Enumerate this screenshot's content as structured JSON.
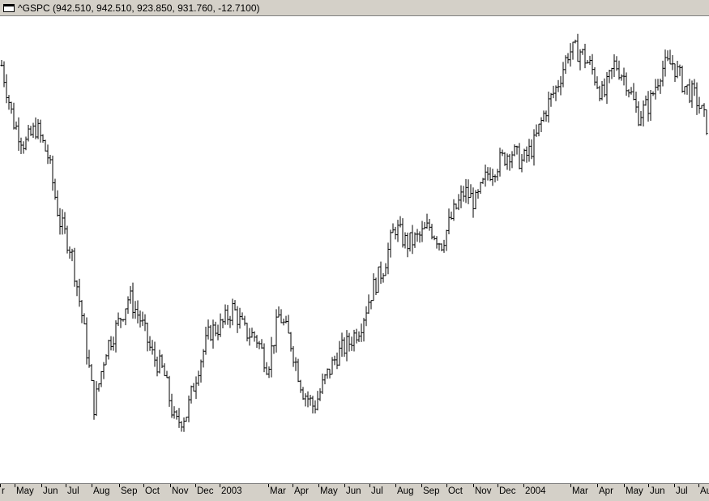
{
  "window": {
    "title": "^GSPC (942.510, 942.510, 923.850, 931.760, -12.7100)",
    "icon": "window-icon"
  },
  "chart_data": {
    "type": "line",
    "title": "^GSPC (942.510, 942.510, 923.850, 931.760, -12.7100)",
    "xlabel": "",
    "ylabel": "",
    "grid": false,
    "legend": "none",
    "line_color": "#000000",
    "x_axis_labels": [
      "r",
      "May",
      "Jun",
      "Jul",
      "Aug",
      "Sep",
      "Oct",
      "Nov",
      "Dec",
      "2003",
      "Mar",
      "Apr",
      "May",
      "Jun",
      "Jul",
      "Aug",
      "Sep",
      "Oct",
      "Nov",
      "Dec",
      "2004",
      "Mar",
      "Apr",
      "May",
      "Jun",
      "Jul",
      "Au"
    ],
    "ylim": [
      770,
      1170
    ],
    "series": [
      {
        "x": [
          "2002-04",
          "2002-04",
          "2002-05",
          "2002-05",
          "2002-05",
          "2002-06",
          "2002-06",
          "2002-07",
          "2002-07",
          "2002-07",
          "2002-07",
          "2002-08",
          "2002-08",
          "2002-08",
          "2002-09",
          "2002-09",
          "2002-10",
          "2002-10",
          "2002-10",
          "2002-11",
          "2002-11",
          "2002-12",
          "2002-12",
          "2002-12",
          "2003-01",
          "2003-01",
          "2003-02",
          "2003-03",
          "2003-03",
          "2003-03",
          "2003-04",
          "2003-04",
          "2003-05",
          "2003-05",
          "2003-06",
          "2003-06",
          "2003-07",
          "2003-07",
          "2003-08",
          "2003-08",
          "2003-09",
          "2003-09",
          "2003-10",
          "2003-10",
          "2003-11",
          "2003-11",
          "2003-12",
          "2003-12",
          "2004-01",
          "2004-01",
          "2004-02",
          "2004-03",
          "2004-03",
          "2004-04",
          "2004-04",
          "2004-05",
          "2004-05",
          "2004-06",
          "2004-06",
          "2004-07",
          "2004-07",
          "2004-08"
        ],
        "values": [
          1128,
          1080,
          1060,
          1075,
          1050,
          995,
          970,
          910,
          835,
          885,
          905,
          930,
          910,
          880,
          865,
          820,
          830,
          870,
          900,
          905,
          920,
          900,
          895,
          870,
          915,
          890,
          850,
          835,
          860,
          880,
          890,
          905,
          935,
          955,
          990,
          975,
          980,
          990,
          975,
          1000,
          1020,
          1010,
          1035,
          1045,
          1055,
          1045,
          1060,
          1090,
          1110,
          1140,
          1140,
          1125,
          1100,
          1130,
          1115,
          1085,
          1095,
          1125,
          1130,
          1110,
          1100,
          1075
        ]
      }
    ]
  }
}
